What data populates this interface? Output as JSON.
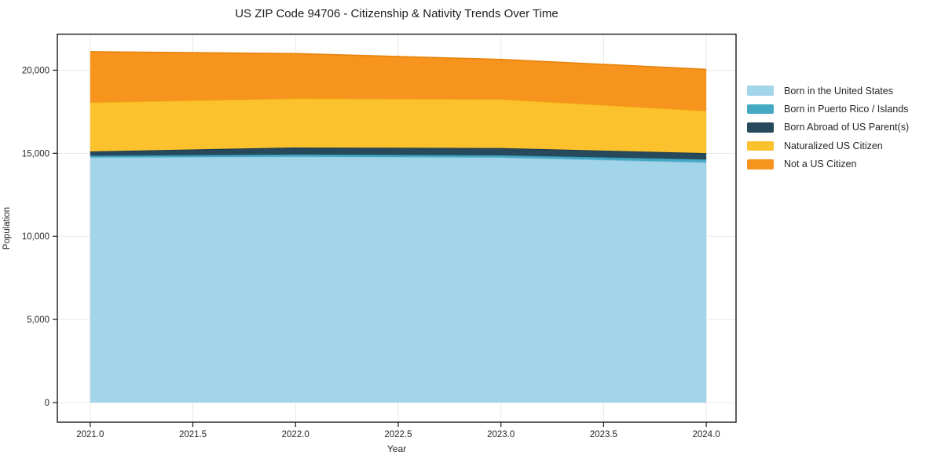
{
  "title": "US ZIP Code 94706 - Citizenship & Nativity Trends Over Time",
  "chart_data": {
    "type": "area",
    "stacked": true,
    "title": "US ZIP Code 94706 - Citizenship & Nativity Trends Over Time",
    "xlabel": "Year",
    "ylabel": "Population",
    "x": [
      2021,
      2022,
      2023,
      2024
    ],
    "xlim": [
      2020.84,
      2024.145
    ],
    "ylim": [
      -1180,
      22170
    ],
    "grid": true,
    "grid_color": "#e8e8e8",
    "frame_color": "#1a1a1a",
    "legend_position": "right",
    "xticks": [
      {
        "label": "2021.0",
        "value": 2021.0
      },
      {
        "label": "2021.5",
        "value": 2021.5
      },
      {
        "label": "2022.0",
        "value": 2022.0
      },
      {
        "label": "2022.5",
        "value": 2022.5
      },
      {
        "label": "2023.0",
        "value": 2023.0
      },
      {
        "label": "2023.5",
        "value": 2023.5
      },
      {
        "label": "2024.0",
        "value": 2024.0
      }
    ],
    "yticks": [
      {
        "label": "0",
        "value": 0
      },
      {
        "label": "5,000",
        "value": 5000
      },
      {
        "label": "10,000",
        "value": 10000
      },
      {
        "label": "15,000",
        "value": 15000
      },
      {
        "label": "20,000",
        "value": 20000
      }
    ],
    "series": [
      {
        "name": "Born in the United States",
        "color": "#a2d4ea",
        "edge_color": "#8ac4de",
        "values": [
          14750,
          14800,
          14750,
          14450
        ]
      },
      {
        "name": "Born in Puerto Rico / Islands",
        "color": "#45a9c4",
        "edge_color": "#3795af",
        "values": [
          100,
          130,
          130,
          180
        ]
      },
      {
        "name": "Born Abroad of US Parent(s)",
        "color": "#26495c",
        "edge_color": "#1c3847",
        "values": [
          260,
          420,
          440,
          380
        ]
      },
      {
        "name": "Naturalized US Citizen",
        "color": "#fcc22d",
        "edge_color": "#efae15",
        "values": [
          2950,
          2950,
          2930,
          2540
        ]
      },
      {
        "name": "Not a US Citizen",
        "color": "#f7941e",
        "edge_color": "#e8830e",
        "values": [
          3050,
          2700,
          2400,
          2500
        ]
      }
    ],
    "totals": [
      21110,
      21000,
      20650,
      20050
    ]
  }
}
